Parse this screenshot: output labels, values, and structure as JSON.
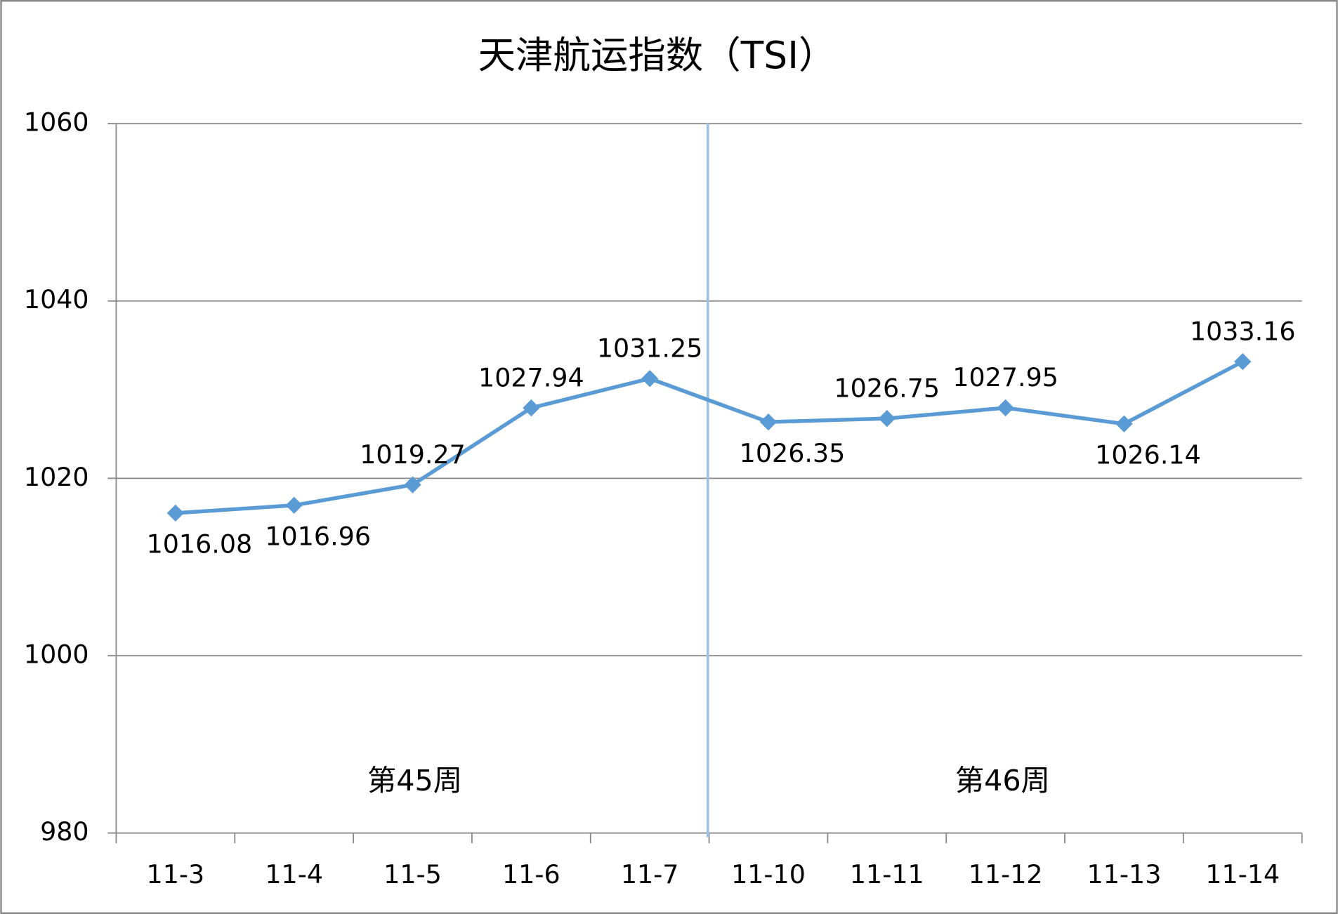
{
  "chart_data": {
    "type": "line",
    "title": "天津航运指数（TSI）",
    "categories": [
      "11-3",
      "11-4",
      "11-5",
      "11-6",
      "11-7",
      "11-10",
      "11-11",
      "11-12",
      "11-13",
      "11-14"
    ],
    "series": [
      {
        "name": "TSI",
        "color": "#5b9bd5",
        "values": [
          1016.08,
          1016.96,
          1019.27,
          1027.94,
          1031.25,
          1026.35,
          1026.75,
          1027.95,
          1026.14,
          1033.16
        ]
      }
    ],
    "ylim": [
      980,
      1060
    ],
    "yticks": [
      980,
      1000,
      1020,
      1040,
      1060
    ],
    "grid": true,
    "annotations": [
      "第45周",
      "第46周"
    ]
  }
}
